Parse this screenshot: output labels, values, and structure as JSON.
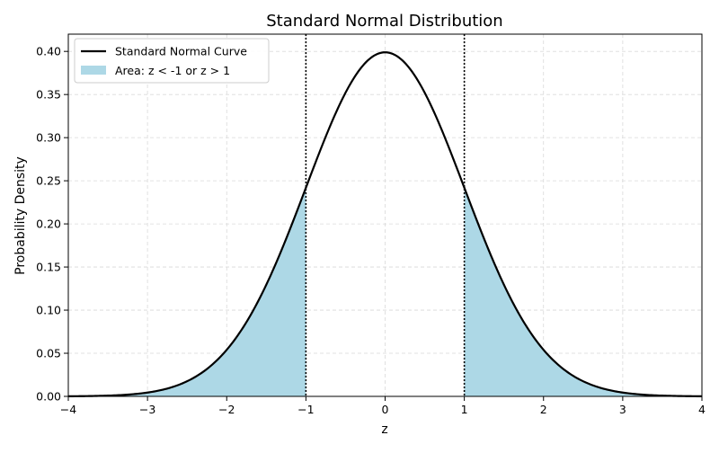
{
  "chart_data": {
    "type": "line",
    "title": "Standard Normal Distribution",
    "xlabel": "z",
    "ylabel": "Probability Density",
    "xlim": [
      -4,
      4
    ],
    "ylim": [
      0,
      0.42
    ],
    "x_ticks": [
      -4,
      -3,
      -2,
      -1,
      0,
      1,
      2,
      3,
      4
    ],
    "x_tick_labels": [
      "−4",
      "−3",
      "−2",
      "−1",
      "0",
      "1",
      "2",
      "3",
      "4"
    ],
    "y_ticks": [
      0,
      0.05,
      0.1,
      0.15,
      0.2,
      0.25,
      0.3,
      0.35,
      0.4
    ],
    "y_tick_labels": [
      "0.00",
      "0.05",
      "0.10",
      "0.15",
      "0.20",
      "0.25",
      "0.30",
      "0.35",
      "0.40"
    ],
    "grid": true,
    "legend_position": "top-left",
    "series": [
      {
        "name": "Standard Normal Curve",
        "kind": "line",
        "color": "#000000",
        "function": "normal_pdf",
        "mean": 0,
        "std": 1
      },
      {
        "name": "Area: z < -1 or z > 1",
        "kind": "area",
        "color": "#add8e6",
        "regions": [
          [
            -4,
            -1
          ],
          [
            1,
            4
          ]
        ]
      }
    ],
    "reference_lines": [
      {
        "x": -1,
        "style": "dotted",
        "color": "#000000"
      },
      {
        "x": 1,
        "style": "dotted",
        "color": "#000000"
      }
    ]
  }
}
